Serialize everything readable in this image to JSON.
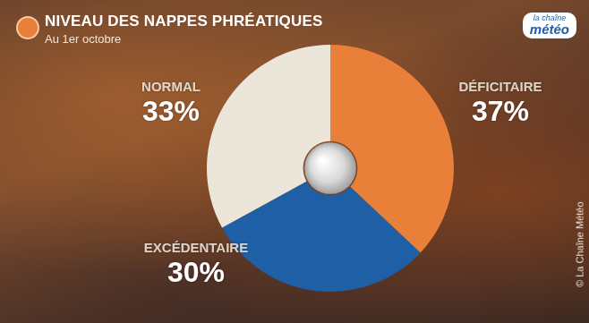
{
  "chart_data": {
    "type": "doughnut",
    "title": "NIVEAU DES NAPPES PHRÉATIQUES",
    "subtitle": "Au 1er octobre",
    "categories": [
      "DÉFICITAIRE",
      "EXCÉDENTAIRE",
      "NORMAL"
    ],
    "values": [
      37,
      30,
      33
    ],
    "value_labels": [
      "37%",
      "30%",
      "33%"
    ],
    "colors": [
      "#e8803a",
      "#1e5fa6",
      "#ece5d9"
    ],
    "data_labels": true,
    "logo_text": [
      "la chaîne",
      "météo"
    ],
    "credit": "© La Chaîne Météo"
  }
}
